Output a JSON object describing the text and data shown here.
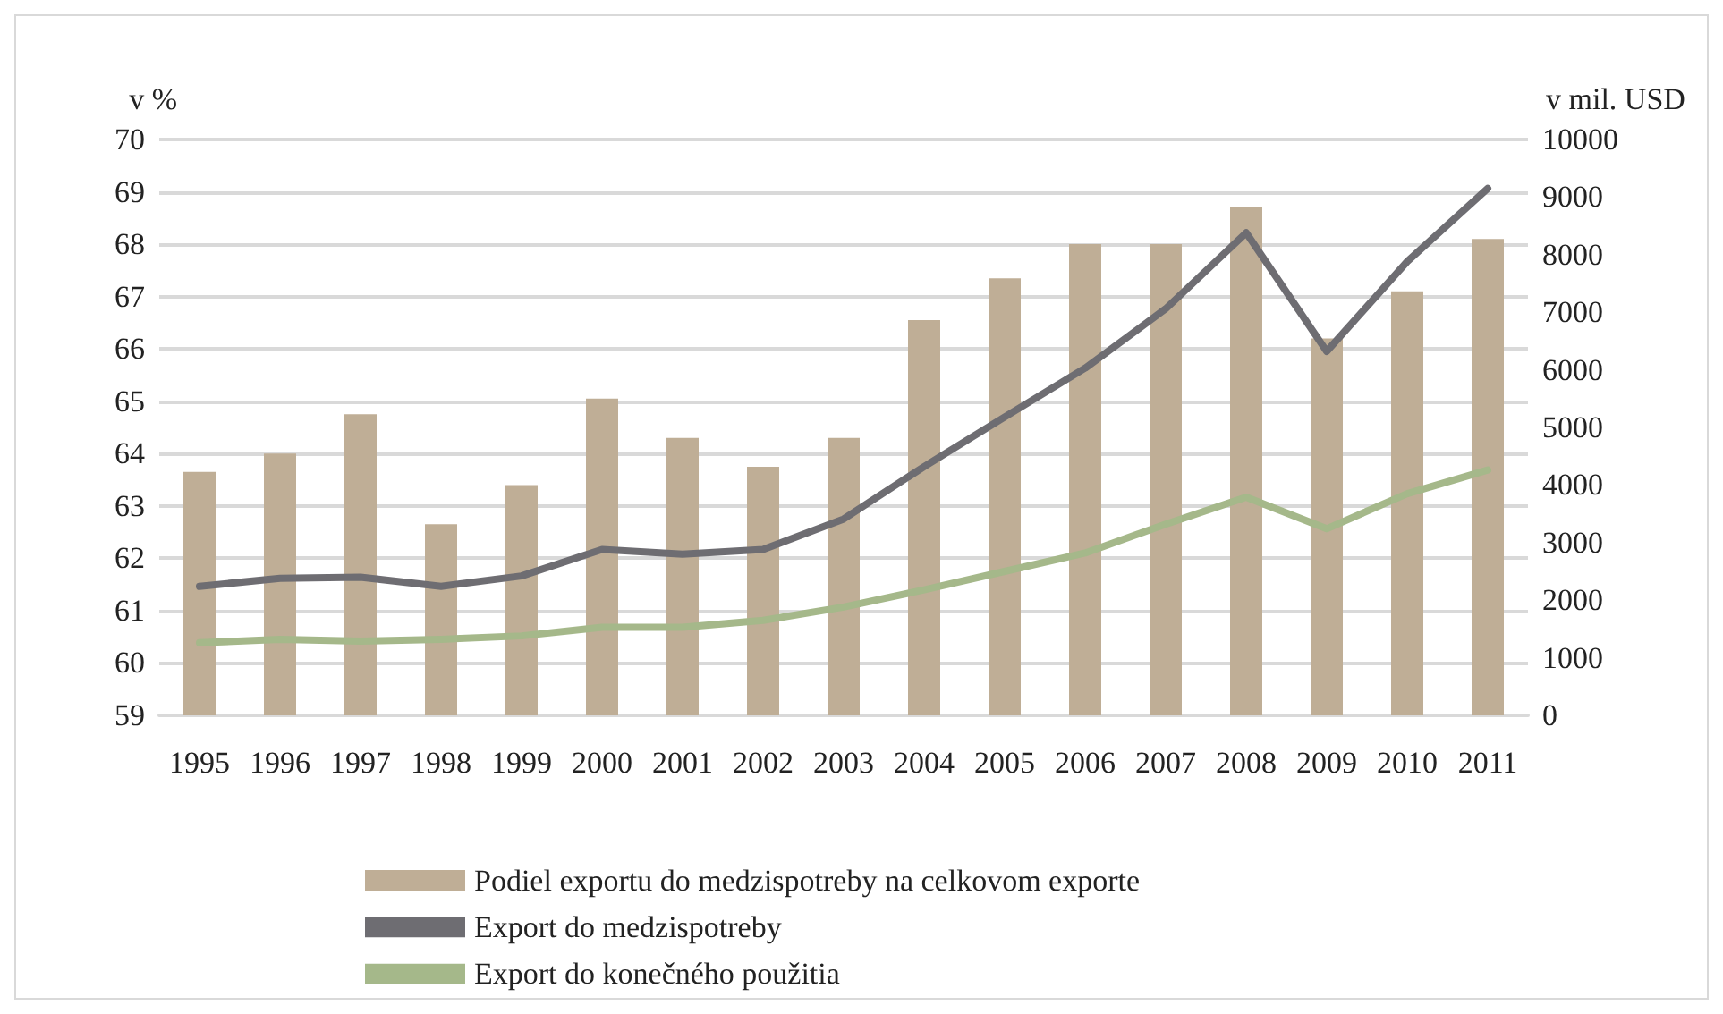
{
  "chart_data": {
    "type": "bar",
    "ylabel": "v %",
    "y2label": "v mil. USD",
    "categories": [
      "1995",
      "1996",
      "1997",
      "1998",
      "1999",
      "2000",
      "2001",
      "2002",
      "2003",
      "2004",
      "2005",
      "2006",
      "2007",
      "2008",
      "2009",
      "2010",
      "2011"
    ],
    "series": [
      {
        "name": "Podiel exportu do medzispotreby na celkovom exporte",
        "color": "#bfae96",
        "values": [
          63.65,
          64.0,
          64.75,
          62.65,
          63.4,
          65.05,
          64.3,
          63.75,
          64.3,
          66.55,
          67.35,
          68.0,
          68.0,
          68.7,
          66.2,
          67.1,
          68.1
        ]
      },
      {
        "name": "Export do medzispotreby",
        "type": "line",
        "axis": "y2",
        "color": "#6e6d72",
        "values": [
          2240,
          2380,
          2400,
          2240,
          2420,
          2880,
          2800,
          2880,
          3410,
          4320,
          5180,
          6030,
          7060,
          8380,
          6320,
          7880,
          9150
        ]
      },
      {
        "name": "Export do konečného použitia",
        "type": "line",
        "axis": "y2",
        "color": "#a5b88a",
        "values": [
          1260,
          1320,
          1290,
          1320,
          1380,
          1530,
          1530,
          1650,
          1880,
          2180,
          2500,
          2820,
          3320,
          3790,
          3240,
          3850,
          4260
        ]
      }
    ],
    "ylim": [
      59,
      70
    ],
    "yticks": [
      59,
      60,
      61,
      62,
      63,
      64,
      65,
      66,
      67,
      68,
      69,
      70
    ],
    "y2lim": [
      0,
      10000
    ],
    "y2ticks": [
      0,
      1000,
      2000,
      3000,
      4000,
      5000,
      6000,
      7000,
      8000,
      9000,
      10000
    ],
    "grid": "y",
    "legend": "bottom",
    "marker": "none",
    "line_style": "solid"
  }
}
